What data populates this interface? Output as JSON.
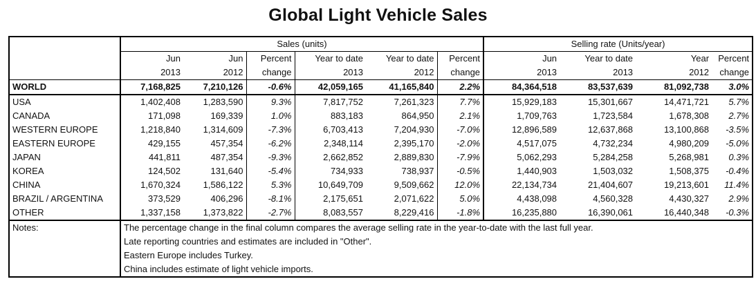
{
  "title": "Global Light Vehicle Sales",
  "groups": {
    "sales": "Sales (units)",
    "rate": "Selling rate (Units/year)"
  },
  "columns": [
    {
      "line1": "Jun",
      "line2": "2013"
    },
    {
      "line1": "Jun",
      "line2": "2012"
    },
    {
      "line1": "Percent",
      "line2": "change"
    },
    {
      "line1": "Year to date",
      "line2": "2013"
    },
    {
      "line1": "Year to date",
      "line2": "2012"
    },
    {
      "line1": "Percent",
      "line2": "change"
    },
    {
      "line1": "Jun",
      "line2": "2013"
    },
    {
      "line1": "Year to date",
      "line2": "2013"
    },
    {
      "line1": "Year",
      "line2": "2012"
    },
    {
      "line1": "Percent",
      "line2": "change"
    }
  ],
  "rows": [
    {
      "region": "WORLD",
      "v": [
        "7,168,825",
        "7,210,126",
        "-0.6%",
        "42,059,165",
        "41,165,840",
        "2.2%",
        "84,364,518",
        "83,537,639",
        "81,092,738",
        "3.0%"
      ]
    },
    {
      "region": "USA",
      "v": [
        "1,402,408",
        "1,283,590",
        "9.3%",
        "7,817,752",
        "7,261,323",
        "7.7%",
        "15,929,183",
        "15,301,667",
        "14,471,721",
        "5.7%"
      ]
    },
    {
      "region": "CANADA",
      "v": [
        "171,098",
        "169,339",
        "1.0%",
        "883,183",
        "864,950",
        "2.1%",
        "1,709,763",
        "1,723,584",
        "1,678,308",
        "2.7%"
      ]
    },
    {
      "region": "WESTERN EUROPE",
      "v": [
        "1,218,840",
        "1,314,609",
        "-7.3%",
        "6,703,413",
        "7,204,930",
        "-7.0%",
        "12,896,589",
        "12,637,868",
        "13,100,868",
        "-3.5%"
      ]
    },
    {
      "region": "EASTERN EUROPE",
      "v": [
        "429,155",
        "457,354",
        "-6.2%",
        "2,348,114",
        "2,395,170",
        "-2.0%",
        "4,517,075",
        "4,732,234",
        "4,980,209",
        "-5.0%"
      ]
    },
    {
      "region": "JAPAN",
      "v": [
        "441,811",
        "487,354",
        "-9.3%",
        "2,662,852",
        "2,889,830",
        "-7.9%",
        "5,062,293",
        "5,284,258",
        "5,268,981",
        "0.3%"
      ]
    },
    {
      "region": "KOREA",
      "v": [
        "124,502",
        "131,640",
        "-5.4%",
        "734,933",
        "738,937",
        "-0.5%",
        "1,440,903",
        "1,503,032",
        "1,508,375",
        "-0.4%"
      ]
    },
    {
      "region": "CHINA",
      "v": [
        "1,670,324",
        "1,586,122",
        "5.3%",
        "10,649,709",
        "9,509,662",
        "12.0%",
        "22,134,734",
        "21,404,607",
        "19,213,601",
        "11.4%"
      ]
    },
    {
      "region": "BRAZIL / ARGENTINA",
      "v": [
        "373,529",
        "406,296",
        "-8.1%",
        "2,175,651",
        "2,071,622",
        "5.0%",
        "4,438,098",
        "4,560,328",
        "4,430,327",
        "2.9%"
      ]
    },
    {
      "region": "OTHER",
      "v": [
        "1,337,158",
        "1,373,822",
        "-2.7%",
        "8,083,557",
        "8,229,416",
        "-1.8%",
        "16,235,880",
        "16,390,061",
        "16,440,348",
        "-0.3%"
      ]
    }
  ],
  "notes": {
    "label": "Notes:",
    "lines": [
      "The percentage change in the final column compares the average selling rate in the year-to-date with the last full year.",
      "Late reporting countries and estimates are included in \"Other\".",
      "Eastern Europe includes Turkey.",
      "China includes estimate of light vehicle imports."
    ]
  }
}
